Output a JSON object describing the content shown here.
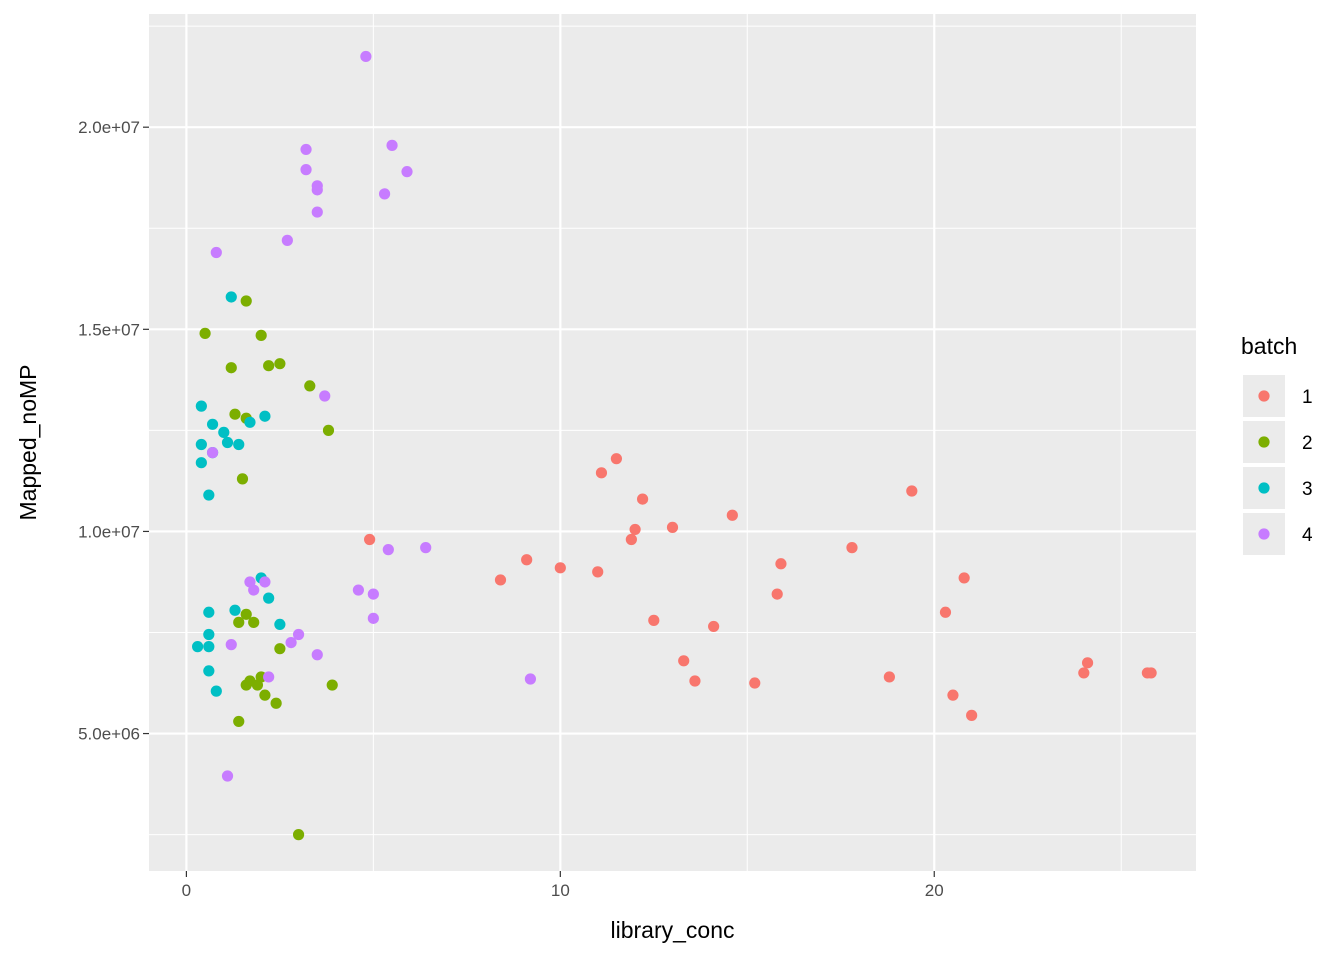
{
  "chart_data": {
    "type": "scatter",
    "title": "",
    "xlabel": "library_conc",
    "ylabel": "Mapped_noMP",
    "xlim": [
      -1,
      27
    ],
    "ylim": [
      1600000,
      22800000
    ],
    "x_ticks": [
      0,
      10,
      20
    ],
    "x_tick_labels": [
      "0",
      "10",
      "20"
    ],
    "y_ticks": [
      5000000,
      10000000,
      15000000,
      20000000
    ],
    "y_tick_labels": [
      "5.0e+06",
      "1.0e+07",
      "1.5e+07",
      "2.0e+07"
    ],
    "grid": true,
    "legend": {
      "title": "batch",
      "placement": "right"
    },
    "series": [
      {
        "name": "1",
        "color": "#F8766D",
        "points": [
          [
            4.9,
            9800000
          ],
          [
            8.4,
            8800000
          ],
          [
            9.1,
            9300000
          ],
          [
            10.0,
            9100000
          ],
          [
            11.0,
            9000000
          ],
          [
            11.1,
            11450000
          ],
          [
            11.5,
            11800000
          ],
          [
            11.9,
            9800000
          ],
          [
            12.0,
            10050000
          ],
          [
            12.2,
            10800000
          ],
          [
            12.5,
            7800000
          ],
          [
            13.0,
            10100000
          ],
          [
            13.3,
            6800000
          ],
          [
            13.6,
            6300000
          ],
          [
            14.1,
            7650000
          ],
          [
            14.6,
            10400000
          ],
          [
            15.2,
            6250000
          ],
          [
            15.8,
            8450000
          ],
          [
            15.9,
            9200000
          ],
          [
            17.8,
            9600000
          ],
          [
            18.8,
            6400000
          ],
          [
            19.4,
            11000000
          ],
          [
            20.3,
            8000000
          ],
          [
            20.5,
            5950000
          ],
          [
            20.8,
            8850000
          ],
          [
            21.0,
            5450000
          ],
          [
            24.0,
            6500000
          ],
          [
            24.1,
            6750000
          ],
          [
            25.7,
            6500000
          ],
          [
            25.8,
            6500000
          ]
        ]
      },
      {
        "name": "2",
        "color": "#7CAE00",
        "points": [
          [
            0.5,
            14900000
          ],
          [
            1.2,
            14050000
          ],
          [
            1.3,
            12900000
          ],
          [
            1.4,
            7750000
          ],
          [
            1.4,
            5300000
          ],
          [
            1.5,
            11300000
          ],
          [
            1.6,
            15700000
          ],
          [
            1.6,
            12800000
          ],
          [
            1.6,
            6200000
          ],
          [
            1.6,
            7950000
          ],
          [
            1.7,
            6300000
          ],
          [
            1.8,
            7750000
          ],
          [
            1.9,
            6200000
          ],
          [
            2.0,
            14850000
          ],
          [
            2.0,
            6400000
          ],
          [
            2.1,
            5950000
          ],
          [
            2.2,
            14100000
          ],
          [
            2.4,
            5750000
          ],
          [
            2.5,
            14150000
          ],
          [
            2.5,
            7100000
          ],
          [
            3.0,
            2500000
          ],
          [
            3.3,
            13600000
          ],
          [
            3.8,
            12500000
          ],
          [
            3.9,
            6200000
          ]
        ]
      },
      {
        "name": "3",
        "color": "#00BFC4",
        "points": [
          [
            0.3,
            7150000
          ],
          [
            0.4,
            12150000
          ],
          [
            0.4,
            11700000
          ],
          [
            0.4,
            13100000
          ],
          [
            0.6,
            10900000
          ],
          [
            0.6,
            8000000
          ],
          [
            0.6,
            7450000
          ],
          [
            0.6,
            7150000
          ],
          [
            0.6,
            6550000
          ],
          [
            0.7,
            12650000
          ],
          [
            0.7,
            11950000
          ],
          [
            0.8,
            6050000
          ],
          [
            1.0,
            12450000
          ],
          [
            1.1,
            12200000
          ],
          [
            1.2,
            15800000
          ],
          [
            1.3,
            8050000
          ],
          [
            1.4,
            12150000
          ],
          [
            1.7,
            12700000
          ],
          [
            2.0,
            8850000
          ],
          [
            2.1,
            12850000
          ],
          [
            2.2,
            8350000
          ],
          [
            2.5,
            7700000
          ]
        ]
      },
      {
        "name": "4",
        "color": "#C77CFF",
        "points": [
          [
            0.7,
            11950000
          ],
          [
            0.8,
            16900000
          ],
          [
            1.1,
            3950000
          ],
          [
            1.2,
            7200000
          ],
          [
            1.7,
            8750000
          ],
          [
            1.8,
            8550000
          ],
          [
            2.1,
            8750000
          ],
          [
            2.2,
            6400000
          ],
          [
            2.7,
            17200000
          ],
          [
            2.8,
            7250000
          ],
          [
            3.0,
            7450000
          ],
          [
            3.2,
            19450000
          ],
          [
            3.2,
            18950000
          ],
          [
            3.5,
            18550000
          ],
          [
            3.5,
            18450000
          ],
          [
            3.5,
            17900000
          ],
          [
            3.5,
            6950000
          ],
          [
            3.7,
            13350000
          ],
          [
            4.6,
            8550000
          ],
          [
            4.8,
            21750000
          ],
          [
            5.0,
            8450000
          ],
          [
            5.0,
            7850000
          ],
          [
            5.3,
            18350000
          ],
          [
            5.4,
            9550000
          ],
          [
            5.5,
            19550000
          ],
          [
            5.9,
            18900000
          ],
          [
            6.4,
            9600000
          ],
          [
            9.2,
            6350000
          ]
        ]
      }
    ]
  }
}
